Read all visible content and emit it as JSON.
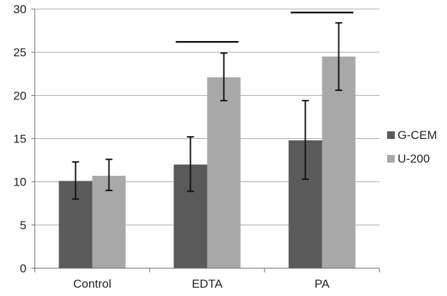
{
  "chart_data": {
    "type": "bar",
    "title": "",
    "xlabel": "",
    "ylabel": "",
    "categories": [
      "Control",
      "EDTA",
      "PA"
    ],
    "series": [
      {
        "name": "G-CEM",
        "color": "#5a5a5a",
        "values": [
          10.1,
          12.0,
          14.8
        ],
        "error": [
          {
            "low": 8.0,
            "high": 12.3
          },
          {
            "low": 8.9,
            "high": 15.2
          },
          {
            "low": 10.3,
            "high": 19.4
          }
        ]
      },
      {
        "name": "U-200",
        "color": "#a8a8a8",
        "values": [
          10.7,
          22.1,
          24.5
        ],
        "error": [
          {
            "low": 9.0,
            "high": 12.6
          },
          {
            "low": 19.4,
            "high": 24.9
          },
          {
            "low": 20.6,
            "high": 28.4
          }
        ]
      }
    ],
    "significance_bars": [
      {
        "category": "EDTA",
        "value": 26.2
      },
      {
        "category": "PA",
        "value": 29.6
      }
    ],
    "ylim": [
      0,
      30
    ],
    "yticks": [
      0,
      5,
      10,
      15,
      20,
      25,
      30
    ],
    "grid": true,
    "legend_position": "right"
  }
}
